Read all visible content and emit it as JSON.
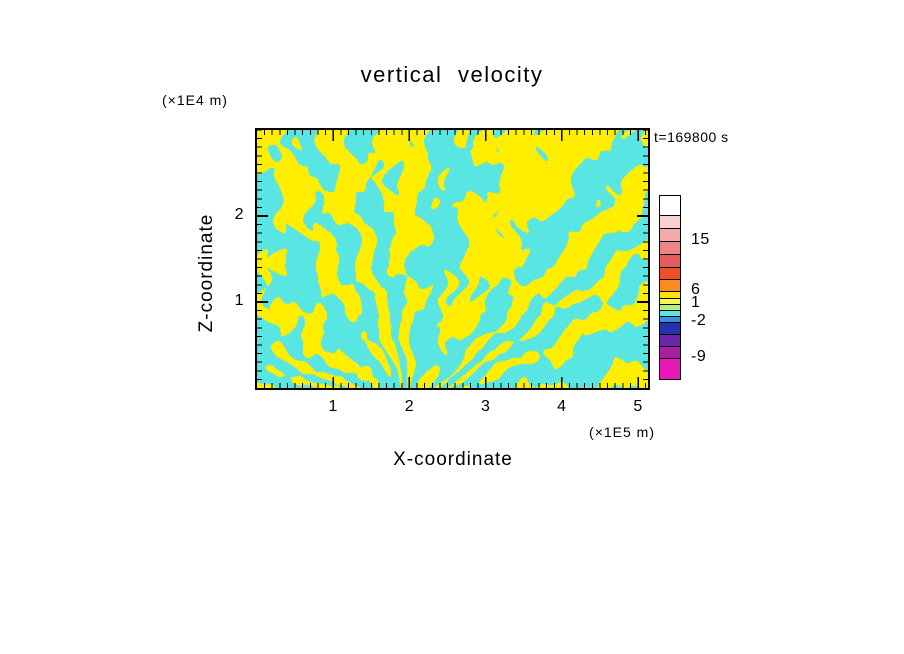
{
  "title": "vertical velocity",
  "timestamp": "t=169800 s",
  "axes": {
    "x": {
      "label": "X-coordinate",
      "units": "(×1E5 m)",
      "ticks": [
        1,
        2,
        3,
        4,
        5
      ],
      "range": [
        0,
        5.13
      ]
    },
    "z": {
      "label": "Z-coordinate",
      "units": "(×1E4 m)",
      "ticks": [
        1,
        2
      ],
      "range": [
        0,
        3.0
      ]
    }
  },
  "chart_data": {
    "type": "heatmap",
    "title": "vertical velocity",
    "xlabel": "X-coordinate",
    "ylabel": "Z-coordinate",
    "x_units": "(×1E5 m)",
    "y_units": "(×1E4 m)",
    "x_ticks": [
      1,
      2,
      3,
      4,
      5
    ],
    "y_ticks": [
      1,
      2
    ],
    "x_range": [
      0,
      5.13
    ],
    "y_range": [
      0,
      3.0
    ],
    "time": "t=169800 s",
    "grid": false,
    "legend_position": "right-colorbar",
    "field": {
      "description": "Filamentary vertical-velocity field in an x–z slice: yellow filaments = upward velocity (≈ 1 to 6), cyan regions = weak/negative velocity (≈ -2 to 1); stripes fan upward from a convergence point near x ≈ 2×1E5 m at the bottom boundary; broader yellow blobs toward the top of the domain, predominantly cyan near the bottom and left edge.",
      "positive_color": "#ffee00",
      "negative_color": "#59e5e2",
      "focus_x": 0.39,
      "positive_fraction": 0.45
    },
    "colorbar": {
      "tick_labels": [
        "15",
        "6",
        "1",
        "-2",
        "-9"
      ],
      "segments": [
        {
          "color": "#ffffff",
          "h": 20
        },
        {
          "color": "#f8d2d2",
          "h": 13
        },
        {
          "color": "#f2abab",
          "h": 13,
          "label": "15"
        },
        {
          "color": "#ec8585",
          "h": 13
        },
        {
          "color": "#e65c5c",
          "h": 13
        },
        {
          "color": "#ee4f2a",
          "h": 12
        },
        {
          "color": "#fb8b1e",
          "h": 12,
          "label": "6"
        },
        {
          "color": "#ffe400",
          "h": 7
        },
        {
          "color": "#f6f455",
          "h": 6,
          "label": "1"
        },
        {
          "color": "#b4ee7a",
          "h": 6
        },
        {
          "color": "#59e5e2",
          "h": 6
        },
        {
          "color": "#3b8fe0",
          "h": 6,
          "label": "-2"
        },
        {
          "color": "#2233b0",
          "h": 12
        },
        {
          "color": "#6a28a8",
          "h": 12
        },
        {
          "color": "#aa1fa0",
          "h": 12,
          "label": "-9"
        },
        {
          "color": "#e619b4",
          "h": 20
        }
      ]
    }
  }
}
